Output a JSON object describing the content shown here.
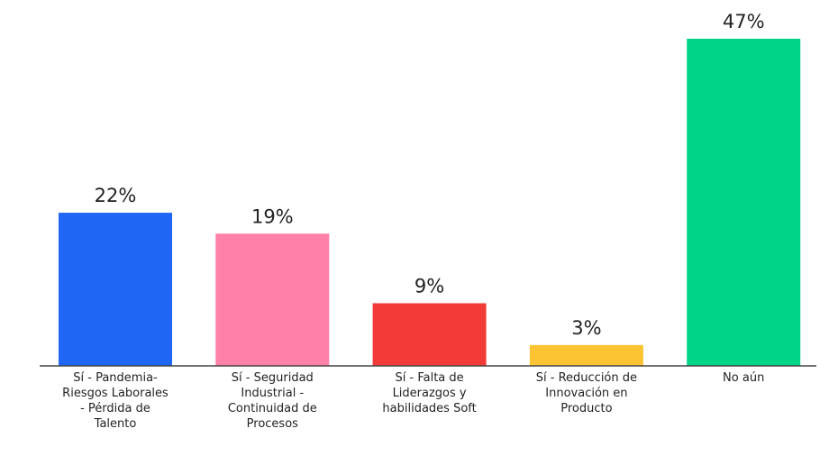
{
  "chart_data": {
    "type": "bar",
    "categories": [
      "Sí - Pandemia- Riesgos Laborales - Pérdida de Talento",
      "Sí - Seguridad Industrial - Continuidad de Procesos",
      "Sí - Falta de Liderazgos y habilidades Soft",
      "Sí - Reducción de Innovación en Producto",
      "No aún"
    ],
    "values": [
      22,
      19,
      9,
      3,
      47
    ],
    "value_labels": [
      "22%",
      "19%",
      "9%",
      "3%",
      "47%"
    ],
    "colors": [
      "#1f66f5",
      "#ff80a8",
      "#f23b36",
      "#fcc433",
      "#00d487"
    ]
  }
}
